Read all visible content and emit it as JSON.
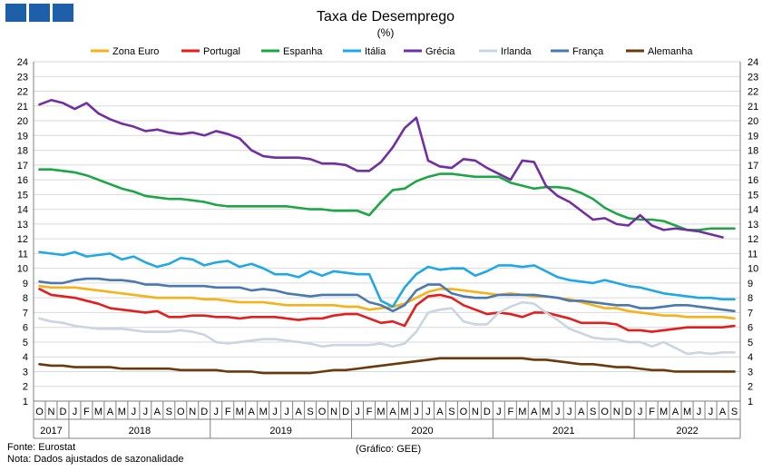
{
  "chart_data": {
    "type": "line",
    "title": "Taxa de Desemprego",
    "subtitle": "(%)",
    "ylim": [
      1,
      24
    ],
    "y_ticks": [
      1,
      2,
      3,
      4,
      5,
      6,
      7,
      8,
      9,
      10,
      11,
      12,
      13,
      14,
      15,
      16,
      17,
      18,
      19,
      20,
      21,
      22,
      23,
      24
    ],
    "month_labels": [
      "O",
      "N",
      "D",
      "J",
      "F",
      "M",
      "A",
      "M",
      "J",
      "J",
      "A",
      "S",
      "O",
      "N",
      "D",
      "J",
      "F",
      "M",
      "A",
      "M",
      "J",
      "J",
      "A",
      "S",
      "O",
      "N",
      "D",
      "J",
      "F",
      "M",
      "A",
      "M",
      "J",
      "J",
      "A",
      "S",
      "O",
      "N",
      "D",
      "J",
      "F",
      "M",
      "A",
      "M",
      "J",
      "J",
      "A",
      "S",
      "O",
      "N",
      "D",
      "J",
      "F",
      "M",
      "A",
      "M",
      "J",
      "J",
      "A",
      "S"
    ],
    "years": [
      {
        "label": "2017",
        "start": 0,
        "end": 2
      },
      {
        "label": "2018",
        "start": 3,
        "end": 14
      },
      {
        "label": "2019",
        "start": 15,
        "end": 26
      },
      {
        "label": "2020",
        "start": 27,
        "end": 38
      },
      {
        "label": "2021",
        "start": 39,
        "end": 50
      },
      {
        "label": "2022",
        "start": 51,
        "end": 59
      }
    ],
    "grid": "horizontal",
    "legend_position": "top",
    "series": [
      {
        "name": "Zona Euro",
        "color": "#f5b21b",
        "values": [
          8.8,
          8.7,
          8.7,
          8.7,
          8.6,
          8.5,
          8.4,
          8.3,
          8.2,
          8.1,
          8.0,
          8.0,
          8.0,
          8.0,
          7.9,
          7.9,
          7.8,
          7.7,
          7.7,
          7.7,
          7.6,
          7.5,
          7.5,
          7.5,
          7.5,
          7.5,
          7.4,
          7.4,
          7.2,
          7.3,
          7.4,
          7.6,
          8.0,
          8.4,
          8.6,
          8.6,
          8.5,
          8.4,
          8.3,
          8.2,
          8.3,
          8.2,
          8.1,
          8.1,
          8.0,
          7.9,
          7.7,
          7.5,
          7.3,
          7.3,
          7.1,
          7.0,
          6.9,
          6.8,
          6.8,
          6.7,
          6.7,
          6.7,
          6.7,
          6.6
        ]
      },
      {
        "name": "Portugal",
        "color": "#e21f1f",
        "values": [
          8.6,
          8.2,
          8.1,
          8.0,
          7.8,
          7.6,
          7.3,
          7.2,
          7.1,
          7.0,
          7.1,
          6.7,
          6.7,
          6.8,
          6.8,
          6.7,
          6.7,
          6.6,
          6.7,
          6.7,
          6.7,
          6.6,
          6.5,
          6.6,
          6.6,
          6.8,
          6.9,
          6.9,
          6.6,
          6.3,
          6.4,
          6.1,
          7.5,
          8.1,
          8.2,
          8.0,
          7.5,
          7.2,
          6.9,
          7.0,
          6.9,
          6.7,
          7.0,
          7.0,
          6.8,
          6.6,
          6.3,
          6.3,
          6.3,
          6.2,
          5.8,
          5.8,
          5.7,
          5.8,
          5.9,
          6.0,
          6.0,
          6.0,
          6.0,
          6.1
        ]
      },
      {
        "name": "Espanha",
        "color": "#1ea546",
        "values": [
          16.7,
          16.7,
          16.6,
          16.5,
          16.3,
          16.0,
          15.7,
          15.4,
          15.2,
          14.9,
          14.8,
          14.7,
          14.7,
          14.6,
          14.5,
          14.3,
          14.2,
          14.2,
          14.2,
          14.2,
          14.2,
          14.2,
          14.1,
          14.0,
          14.0,
          13.9,
          13.9,
          13.9,
          13.6,
          14.5,
          15.3,
          15.4,
          15.9,
          16.2,
          16.4,
          16.4,
          16.3,
          16.2,
          16.2,
          16.2,
          15.8,
          15.6,
          15.4,
          15.5,
          15.5,
          15.4,
          15.1,
          14.7,
          14.1,
          13.7,
          13.4,
          13.3,
          13.3,
          13.2,
          12.9,
          12.6,
          12.6,
          12.7,
          12.7,
          12.7
        ]
      },
      {
        "name": "Itália",
        "color": "#1fa8e4",
        "values": [
          11.1,
          11.0,
          10.9,
          11.1,
          10.8,
          10.9,
          11.0,
          10.6,
          10.8,
          10.4,
          10.1,
          10.3,
          10.7,
          10.6,
          10.2,
          10.4,
          10.5,
          10.1,
          10.3,
          10.0,
          9.6,
          9.6,
          9.4,
          9.8,
          9.5,
          9.8,
          9.7,
          9.6,
          9.6,
          7.8,
          7.4,
          8.7,
          9.6,
          10.1,
          9.9,
          10.0,
          10.0,
          9.5,
          9.8,
          10.2,
          10.2,
          10.1,
          10.2,
          9.8,
          9.4,
          9.2,
          9.1,
          9.0,
          9.2,
          9.0,
          8.8,
          8.7,
          8.5,
          8.3,
          8.2,
          8.1,
          8.0,
          8.0,
          7.9,
          7.9
        ]
      },
      {
        "name": "Grécia",
        "color": "#7030a0",
        "values": [
          21.1,
          21.4,
          21.2,
          20.8,
          21.2,
          20.5,
          20.1,
          19.8,
          19.6,
          19.3,
          19.4,
          19.2,
          19.1,
          19.2,
          19.0,
          19.3,
          19.1,
          18.8,
          18.0,
          17.6,
          17.5,
          17.5,
          17.5,
          17.4,
          17.1,
          17.1,
          17.0,
          16.6,
          16.6,
          17.2,
          18.2,
          19.5,
          20.2,
          17.3,
          16.9,
          16.8,
          17.4,
          17.3,
          16.8,
          16.4,
          16.0,
          17.3,
          17.2,
          15.6,
          14.9,
          14.5,
          13.9,
          13.3,
          13.4,
          13.0,
          12.9,
          13.6,
          12.9,
          12.6,
          12.7,
          12.6,
          12.5,
          12.3,
          12.1,
          null
        ]
      },
      {
        "name": "Irlanda",
        "color": "#c9d6e2",
        "values": [
          6.6,
          6.4,
          6.3,
          6.1,
          6.0,
          5.9,
          5.9,
          5.9,
          5.8,
          5.7,
          5.7,
          5.7,
          5.8,
          5.7,
          5.5,
          5.0,
          4.9,
          5.0,
          5.1,
          5.2,
          5.2,
          5.1,
          5.0,
          4.9,
          4.7,
          4.8,
          4.8,
          4.8,
          4.8,
          4.9,
          4.7,
          4.9,
          5.7,
          7.0,
          7.2,
          7.3,
          6.4,
          6.2,
          6.2,
          7.0,
          7.4,
          7.7,
          7.6,
          7.0,
          6.5,
          5.9,
          5.6,
          5.3,
          5.2,
          5.2,
          5.0,
          5.0,
          4.7,
          5.0,
          4.6,
          4.2,
          4.3,
          4.2,
          4.3,
          4.3
        ]
      },
      {
        "name": "França",
        "color": "#4a79b0",
        "values": [
          9.1,
          9.0,
          9.0,
          9.2,
          9.3,
          9.3,
          9.2,
          9.2,
          9.1,
          8.9,
          8.9,
          8.8,
          8.8,
          8.8,
          8.8,
          8.7,
          8.7,
          8.7,
          8.5,
          8.6,
          8.5,
          8.3,
          8.2,
          8.1,
          8.2,
          8.2,
          8.2,
          8.2,
          7.7,
          7.5,
          7.1,
          7.5,
          8.5,
          8.9,
          8.9,
          8.3,
          8.1,
          8.0,
          8.0,
          8.2,
          8.2,
          8.2,
          8.2,
          8.1,
          8.0,
          7.8,
          7.8,
          7.7,
          7.6,
          7.5,
          7.5,
          7.3,
          7.3,
          7.4,
          7.5,
          7.5,
          7.4,
          7.3,
          7.2,
          7.1
        ]
      },
      {
        "name": "Alemanha",
        "color": "#6b3a0c",
        "values": [
          3.5,
          3.4,
          3.4,
          3.3,
          3.3,
          3.3,
          3.3,
          3.2,
          3.2,
          3.2,
          3.2,
          3.2,
          3.1,
          3.1,
          3.1,
          3.1,
          3.0,
          3.0,
          3.0,
          2.9,
          2.9,
          2.9,
          2.9,
          2.9,
          3.0,
          3.1,
          3.1,
          3.2,
          3.3,
          3.4,
          3.5,
          3.6,
          3.7,
          3.8,
          3.9,
          3.9,
          3.9,
          3.9,
          3.9,
          3.9,
          3.9,
          3.9,
          3.8,
          3.8,
          3.7,
          3.6,
          3.5,
          3.5,
          3.4,
          3.3,
          3.3,
          3.2,
          3.1,
          3.1,
          3.0,
          3.0,
          3.0,
          3.0,
          3.0,
          3.0
        ]
      }
    ]
  },
  "footer": {
    "source": "Fonte: Eurostat",
    "note": "Nota: Dados ajustados de sazonalidade",
    "credit": "(Gráfico: GEE)"
  }
}
